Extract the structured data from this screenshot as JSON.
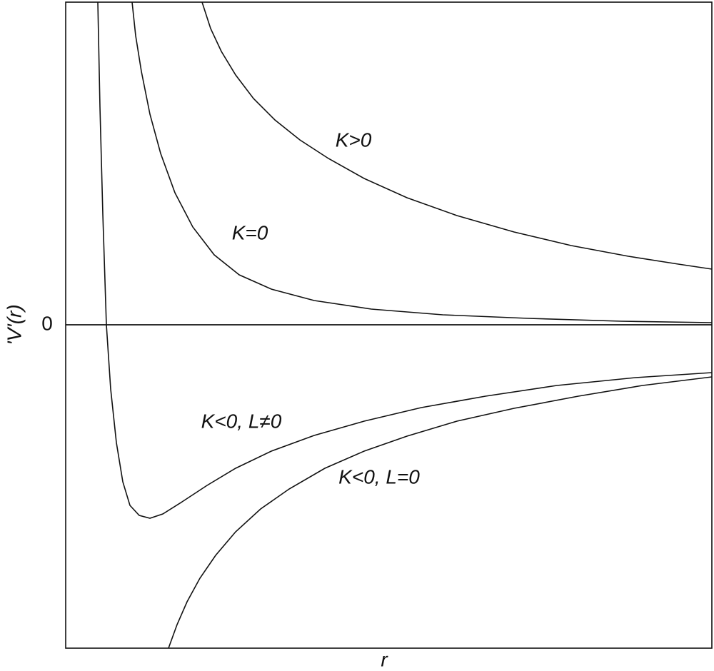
{
  "axes": {
    "y_label": "'V'(r)",
    "x_label": "r",
    "zero_label": "0"
  },
  "curves": [
    {
      "label": "K>0"
    },
    {
      "label": "K=0"
    },
    {
      "label": "K<0, L≠0"
    },
    {
      "label": "K<0, L=0"
    }
  ]
}
